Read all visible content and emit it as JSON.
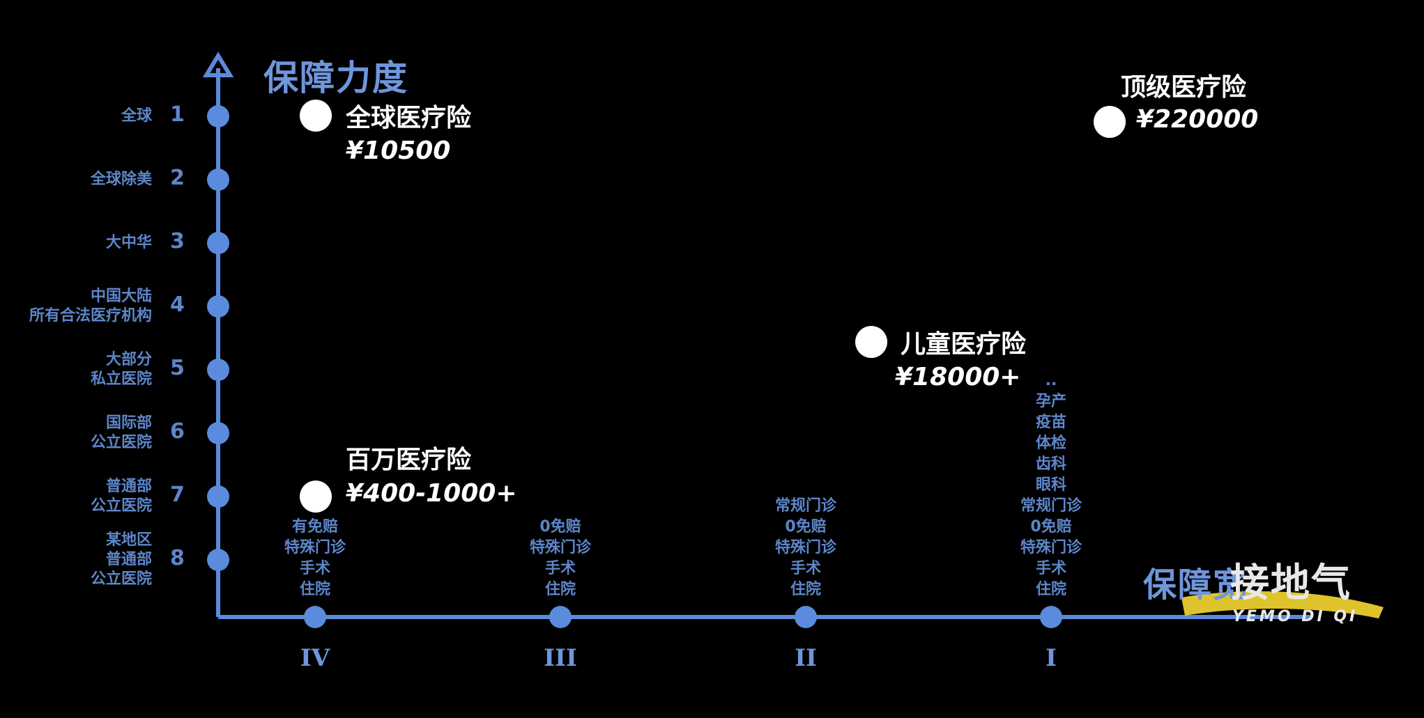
{
  "y_axis": {
    "title": "保障力度",
    "ticks": [
      {
        "num": "1",
        "label": "全球"
      },
      {
        "num": "2",
        "label": "全球除美"
      },
      {
        "num": "3",
        "label": "大中华"
      },
      {
        "num": "4",
        "label": "中国大陆\n所有合法医疗机构"
      },
      {
        "num": "5",
        "label": "大部分\n私立医院"
      },
      {
        "num": "6",
        "label": "国际部\n公立医院"
      },
      {
        "num": "7",
        "label": "普通部\n公立医院"
      },
      {
        "num": "8",
        "label": "某地区\n普通部\n公立医院"
      }
    ]
  },
  "x_axis": {
    "title": "保障宽",
    "ticks": [
      {
        "roman": "IV",
        "features": "有免赔\n特殊门诊\n手术\n住院"
      },
      {
        "roman": "III",
        "features": "0免赔\n特殊门诊\n手术\n住院"
      },
      {
        "roman": "II",
        "features": "常规门诊\n0免赔\n特殊门诊\n手术\n住院"
      },
      {
        "roman": "I",
        "features": "..\n孕产\n疫苗\n体检\n齿科\n眼科\n常规门诊\n0免赔\n特殊门诊\n手术\n住院"
      }
    ]
  },
  "products": [
    {
      "name": "全球医疗险",
      "price": "¥10500"
    },
    {
      "name": "百万医疗险",
      "price": "¥400-1000+"
    },
    {
      "name": "儿童医疗险",
      "price": "¥18000+"
    },
    {
      "name": "顶级医疗险",
      "price": "¥220000"
    }
  ],
  "watermark": {
    "main": "接地气",
    "sub": "YEMO DI QI"
  },
  "colors": {
    "axis": "#5b8bdc",
    "text": "#5d86c9",
    "dot": "#ffffff",
    "background": "#000000",
    "brush": "#f2d430"
  }
}
